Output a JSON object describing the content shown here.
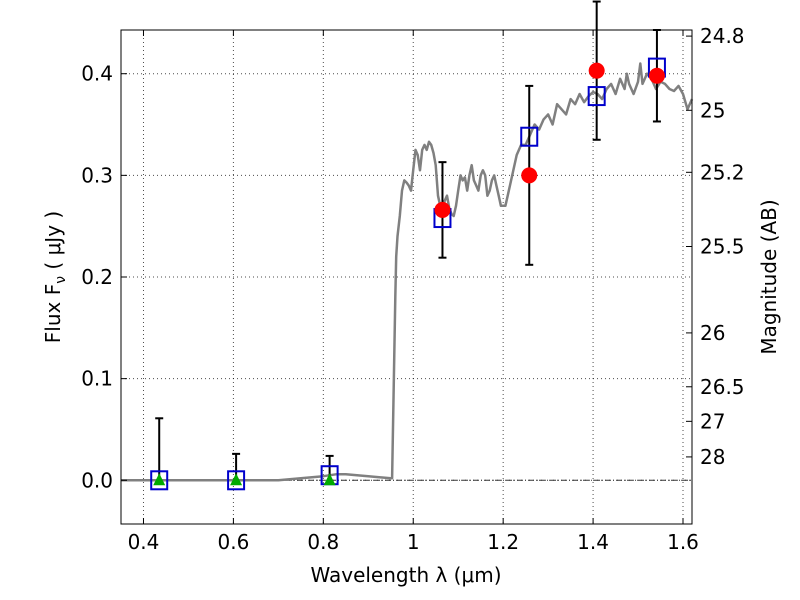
{
  "chart_data": {
    "type": "scatter",
    "xlabel": "Wavelength  λ (μm)",
    "ylabel": "Flux  F",
    "ylabel_sub": "ν",
    "ylabel_unit": "  ( μJy )",
    "ylabel_right": "Magnitude (AB)",
    "xlim": [
      0.35,
      1.62
    ],
    "ylim": [
      -0.043,
      0.443
    ],
    "grid": true,
    "x_ticks": [
      0.4,
      0.6,
      0.8,
      1.0,
      1.2,
      1.4,
      1.6
    ],
    "x_tick_labels": [
      "0.4",
      "0.6",
      "0.8",
      "1",
      "1.2",
      "1.4",
      "1.6"
    ],
    "y_ticks": [
      0.0,
      0.1,
      0.2,
      0.3,
      0.4
    ],
    "y_tick_labels": [
      "0.0",
      "0.1",
      "0.2",
      "0.3",
      "0.4"
    ],
    "right_ticks": [
      {
        "label": "24.8",
        "flux": 0.437
      },
      {
        "label": "25",
        "flux": 0.364
      },
      {
        "label": "25.2",
        "flux": 0.303
      },
      {
        "label": "25.5",
        "flux": 0.23
      },
      {
        "label": "26",
        "flux": 0.145
      },
      {
        "label": "26.5",
        "flux": 0.092
      },
      {
        "label": "27",
        "flux": 0.058
      },
      {
        "label": "28",
        "flux": 0.023
      }
    ],
    "colors": {
      "model": "#808080",
      "observed": "#ff0000",
      "upper_limit": "#00aa00",
      "synthetic": "#0000cc",
      "errorbar": "#000000"
    },
    "series": [
      {
        "role": "model_sed",
        "x": [
          0.35,
          0.7,
          0.75,
          0.8,
          0.83,
          0.85,
          0.9,
          0.95,
          0.953,
          0.96,
          0.962,
          0.965,
          0.97,
          0.975,
          0.98,
          0.985,
          0.99,
          0.995,
          1.0,
          1.005,
          1.01,
          1.015,
          1.02,
          1.025,
          1.03,
          1.035,
          1.04,
          1.045,
          1.05,
          1.055,
          1.06,
          1.065,
          1.07,
          1.075,
          1.08,
          1.085,
          1.09,
          1.095,
          1.1,
          1.105,
          1.11,
          1.115,
          1.12,
          1.125,
          1.13,
          1.135,
          1.14,
          1.145,
          1.15,
          1.155,
          1.16,
          1.165,
          1.17,
          1.175,
          1.18,
          1.185,
          1.19,
          1.195,
          1.2,
          1.205,
          1.21,
          1.22,
          1.23,
          1.24,
          1.25,
          1.26,
          1.27,
          1.28,
          1.29,
          1.3,
          1.31,
          1.32,
          1.33,
          1.34,
          1.35,
          1.36,
          1.37,
          1.38,
          1.39,
          1.4,
          1.41,
          1.42,
          1.43,
          1.44,
          1.45,
          1.46,
          1.47,
          1.475,
          1.48,
          1.49,
          1.5,
          1.505,
          1.51,
          1.52,
          1.53,
          1.54,
          1.55,
          1.56,
          1.57,
          1.58,
          1.59,
          1.6,
          1.61,
          1.62
        ],
        "y": [
          0.0,
          0.0,
          0.002,
          0.004,
          0.006,
          0.006,
          0.004,
          0.002,
          0.002,
          0.18,
          0.22,
          0.24,
          0.26,
          0.285,
          0.295,
          0.293,
          0.29,
          0.285,
          0.305,
          0.325,
          0.32,
          0.305,
          0.325,
          0.33,
          0.325,
          0.333,
          0.33,
          0.322,
          0.31,
          0.28,
          0.27,
          0.265,
          0.275,
          0.28,
          0.268,
          0.262,
          0.26,
          0.27,
          0.285,
          0.3,
          0.295,
          0.298,
          0.285,
          0.3,
          0.31,
          0.295,
          0.29,
          0.285,
          0.3,
          0.305,
          0.3,
          0.28,
          0.285,
          0.295,
          0.3,
          0.29,
          0.28,
          0.27,
          0.27,
          0.27,
          0.28,
          0.3,
          0.32,
          0.33,
          0.33,
          0.34,
          0.35,
          0.345,
          0.355,
          0.36,
          0.35,
          0.37,
          0.365,
          0.36,
          0.375,
          0.37,
          0.38,
          0.372,
          0.378,
          0.382,
          0.38,
          0.375,
          0.385,
          0.39,
          0.38,
          0.395,
          0.385,
          0.4,
          0.39,
          0.38,
          0.392,
          0.41,
          0.39,
          0.4,
          0.395,
          0.385,
          0.392,
          0.39,
          0.385,
          0.383,
          0.388,
          0.38,
          0.365,
          0.375
        ]
      },
      {
        "role": "observed",
        "x": [
          1.065,
          1.258,
          1.408,
          1.542
        ],
        "y": [
          0.266,
          0.3,
          0.403,
          0.398
        ],
        "yerr": [
          0.047,
          0.088,
          0.068,
          0.045
        ]
      },
      {
        "role": "upper_limit",
        "x": [
          0.435,
          0.606,
          0.814
        ],
        "y": [
          0.0,
          0.0,
          0.0
        ],
        "yerr": [
          0.061,
          0.026,
          0.024
        ]
      },
      {
        "role": "synthetic",
        "x": [
          0.435,
          0.606,
          0.814,
          1.065,
          1.258,
          1.408,
          1.542
        ],
        "y": [
          0.0,
          0.0,
          0.005,
          0.258,
          0.338,
          0.378,
          0.406
        ]
      }
    ]
  }
}
